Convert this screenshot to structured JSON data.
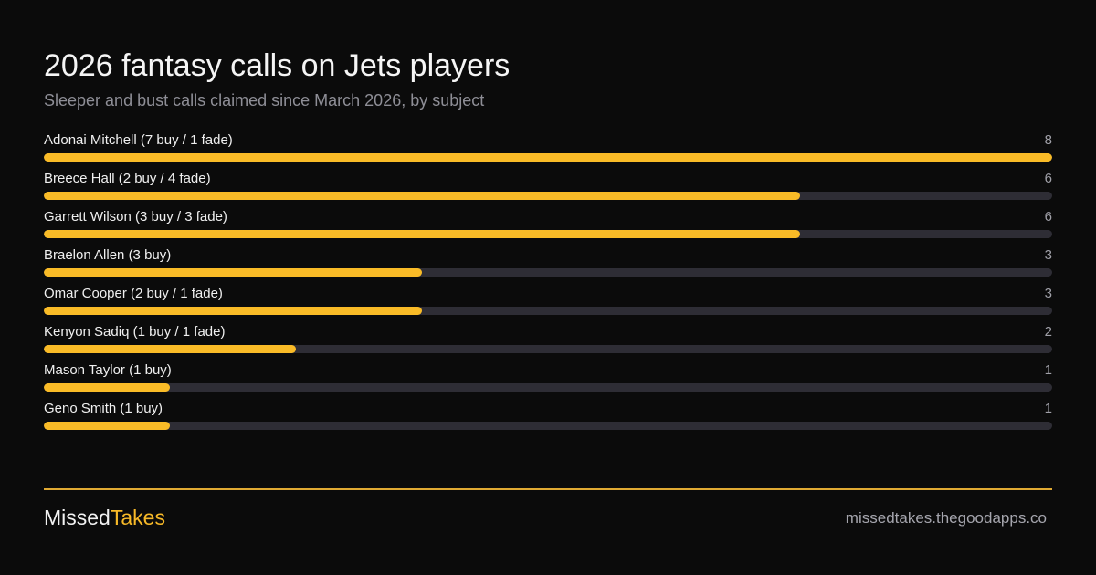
{
  "header": {
    "title": "2026 fantasy calls on Jets players",
    "subtitle": "Sleeper and bust calls claimed since March 2026, by subject"
  },
  "chart_data": {
    "type": "bar",
    "orientation": "horizontal",
    "title": "2026 fantasy calls on Jets players",
    "subtitle": "Sleeper and bust calls claimed since March 2026, by subject",
    "xlim": [
      0,
      8
    ],
    "grid": false,
    "categories": [
      "Adonai Mitchell (7 buy / 1 fade)",
      "Breece Hall (2 buy / 4 fade)",
      "Garrett Wilson (3 buy / 3 fade)",
      "Braelon Allen (3 buy)",
      "Omar Cooper (2 buy / 1 fade)",
      "Kenyon Sadiq (1 buy / 1 fade)",
      "Mason Taylor (1 buy)",
      "Geno Smith (1 buy)"
    ],
    "values": [
      8,
      6,
      6,
      3,
      3,
      2,
      1,
      1
    ],
    "value_labels": [
      "8",
      "6",
      "6",
      "3",
      "3",
      "2",
      "1",
      "1"
    ],
    "colors": {
      "bar": "#f9bb27",
      "track": "#2e2d35"
    }
  },
  "footer": {
    "brand_part1": "Missed",
    "brand_part2": "Takes",
    "url": "missedtakes.thegoodapps.co"
  }
}
